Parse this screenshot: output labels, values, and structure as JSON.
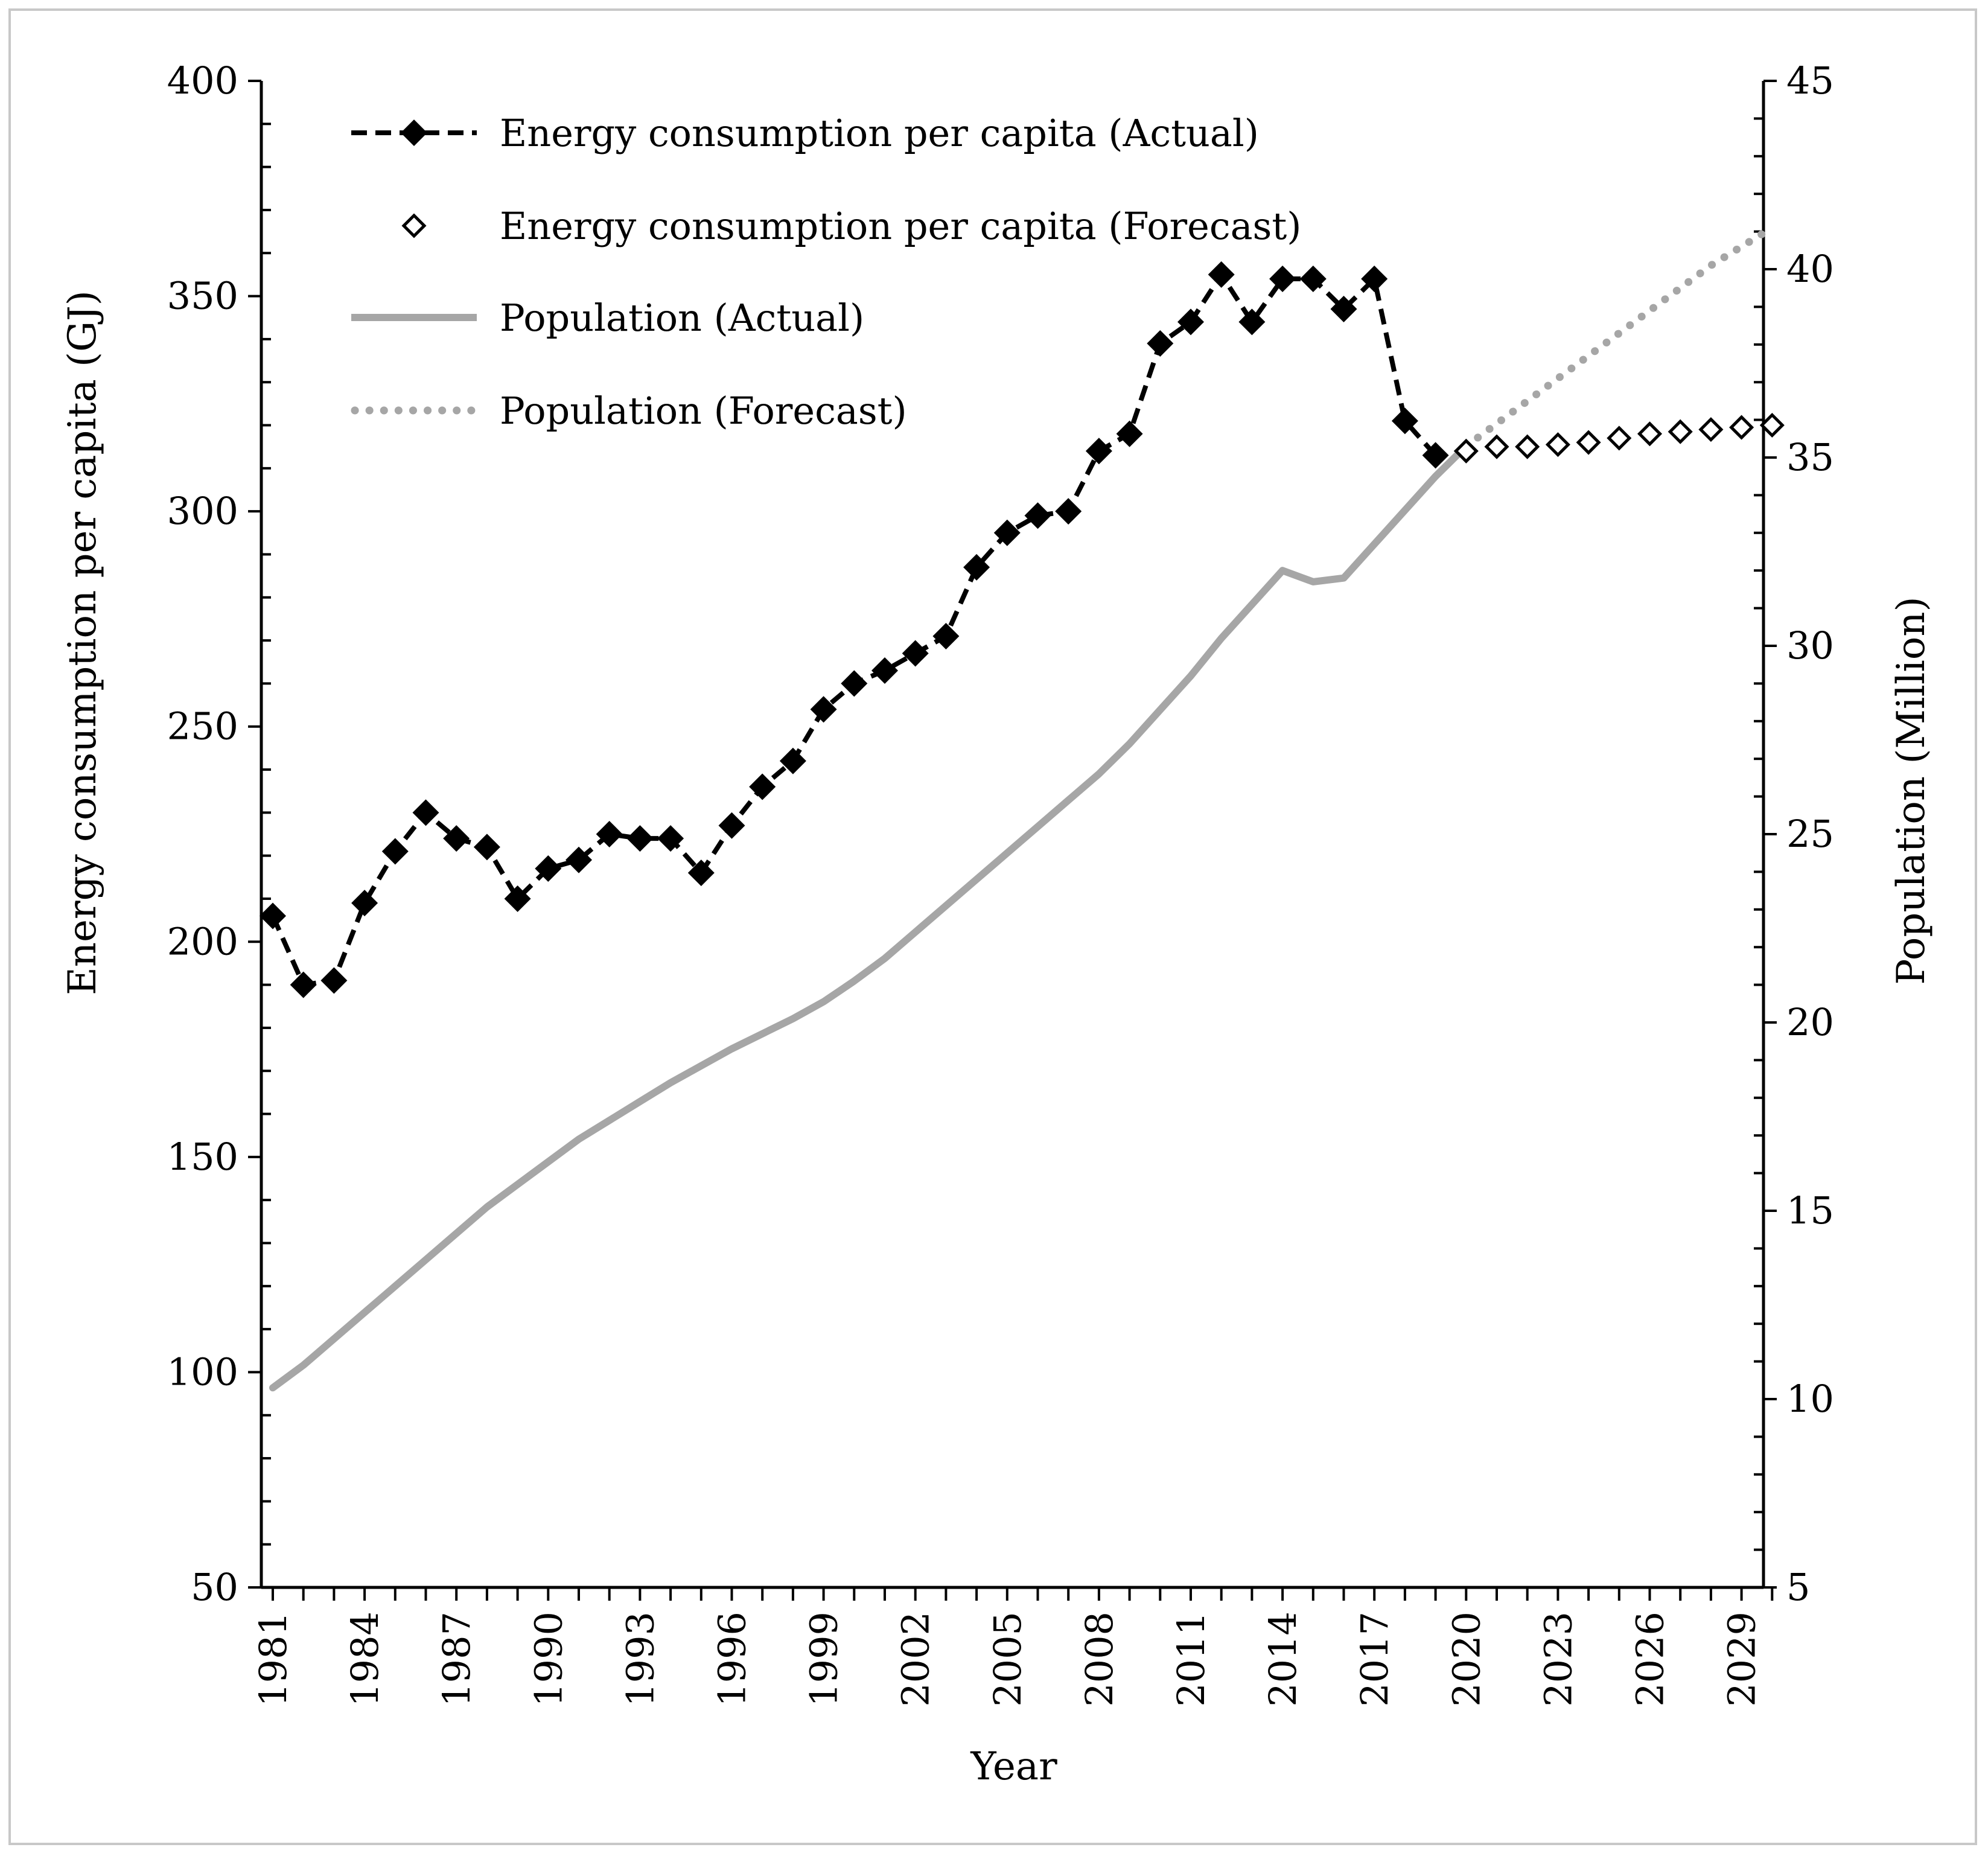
{
  "chart_data": {
    "type": "line",
    "xlabel": "Year",
    "ylabel": "Energy consumption per capita (GJ)",
    "y2label": "Population (Million)",
    "ylim": [
      50,
      400
    ],
    "y2lim": [
      5,
      45
    ],
    "xlim": [
      1981,
      2030
    ],
    "yticks": [
      "50",
      "100",
      "150",
      "200",
      "250",
      "300",
      "350",
      "400"
    ],
    "y2ticks": [
      "5",
      "10",
      "15",
      "20",
      "25",
      "30",
      "35",
      "40",
      "45"
    ],
    "xticks": [
      "1981",
      "1984",
      "1987",
      "1990",
      "1993",
      "1996",
      "1999",
      "2002",
      "2005",
      "2008",
      "2011",
      "2014",
      "2017",
      "2020",
      "2023",
      "2026",
      "2029"
    ],
    "legend": [
      {
        "label": "Energy consumption per capita (Actual)",
        "style": "dashed-filled-diamond"
      },
      {
        "label": "Energy consumption per capita (Forecast)",
        "style": "open-diamond"
      },
      {
        "label": "Population (Actual)",
        "style": "solid-gray"
      },
      {
        "label": "Population (Forecast)",
        "style": "dotted-gray"
      }
    ],
    "series": [
      {
        "name": "Energy consumption per capita (Actual)",
        "axis": "left",
        "x": [
          1981,
          1982,
          1983,
          1984,
          1985,
          1986,
          1987,
          1988,
          1989,
          1990,
          1991,
          1992,
          1993,
          1994,
          1995,
          1996,
          1997,
          1998,
          1999,
          2000,
          2001,
          2002,
          2003,
          2004,
          2005,
          2006,
          2007,
          2008,
          2009,
          2010,
          2011,
          2012,
          2013,
          2014,
          2015,
          2016,
          2017,
          2018,
          2019
        ],
        "values": [
          206,
          190,
          191,
          209,
          221,
          230,
          224,
          222,
          210,
          217,
          219,
          225,
          224,
          224,
          216,
          227,
          236,
          242,
          254,
          260,
          263,
          267,
          271,
          287,
          295,
          299,
          300,
          314,
          318,
          339,
          344,
          355,
          344,
          354,
          354,
          347,
          354,
          321,
          313
        ]
      },
      {
        "name": "Energy consumption per capita (Forecast)",
        "axis": "left",
        "x": [
          2020,
          2021,
          2022,
          2023,
          2024,
          2025,
          2026,
          2027,
          2028,
          2029,
          2030
        ],
        "values": [
          314,
          315,
          315,
          315.5,
          316,
          317,
          318,
          318.5,
          319,
          319.5,
          320
        ]
      },
      {
        "name": "Population (Actual)",
        "axis": "right",
        "x": [
          1981,
          1982,
          1983,
          1984,
          1985,
          1986,
          1987,
          1988,
          1989,
          1990,
          1991,
          1992,
          1993,
          1994,
          1995,
          1996,
          1997,
          1998,
          1999,
          2000,
          2001,
          2002,
          2003,
          2004,
          2005,
          2006,
          2007,
          2008,
          2009,
          2010,
          2011,
          2012,
          2013,
          2014,
          2015,
          2016,
          2017,
          2018,
          2019,
          2020
        ],
        "values": [
          10.3,
          10.9,
          11.6,
          12.3,
          13.0,
          13.7,
          14.4,
          15.1,
          15.7,
          16.3,
          16.9,
          17.4,
          17.9,
          18.4,
          18.85,
          19.3,
          19.7,
          20.1,
          20.55,
          21.1,
          21.7,
          22.4,
          23.1,
          23.8,
          24.5,
          25.2,
          25.9,
          26.6,
          27.4,
          28.3,
          29.2,
          30.2,
          31.1,
          32.0,
          31.7,
          31.8,
          32.7,
          33.6,
          34.5,
          35.3
        ]
      },
      {
        "name": "Population (Forecast)",
        "axis": "right",
        "x": [
          2020,
          2021,
          2022,
          2023,
          2024,
          2025,
          2026,
          2027,
          2028,
          2029,
          2030
        ],
        "values": [
          35.3,
          35.9,
          36.5,
          37.1,
          37.7,
          38.3,
          38.9,
          39.5,
          40.1,
          40.6,
          41.1
        ]
      }
    ]
  }
}
